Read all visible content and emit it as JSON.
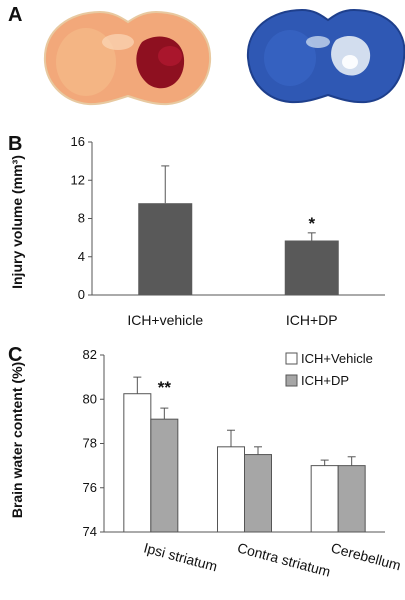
{
  "panels": {
    "a": "A",
    "b": "B",
    "c": "C"
  },
  "images": {
    "left": {
      "name": "TTC-stained coronal brain section",
      "tissue_color": "#f2a87a",
      "lesion_color": "#8e1020"
    },
    "right": {
      "name": "Luxol blue-stained coronal brain section",
      "tissue_color": "#2f58b4",
      "lesion_color": "#e4ecf4"
    }
  },
  "chart_data": [
    {
      "id": "B",
      "type": "bar",
      "title": "",
      "ylabel": "Injury volume (mm³)",
      "xlabel": "",
      "ylim": [
        0,
        16
      ],
      "yticks": [
        "0",
        "4",
        "8",
        "12",
        "16"
      ],
      "categories": [
        "ICH+vehicle",
        "ICH+DP"
      ],
      "values": [
        9.6,
        5.7
      ],
      "errors": [
        3.9,
        0.8
      ],
      "significance": [
        "",
        "*"
      ],
      "bar_color": "#595959",
      "grid": false
    },
    {
      "id": "C",
      "type": "bar",
      "title": "",
      "ylabel": "Brain water content (%)",
      "xlabel": "",
      "ylim": [
        74,
        82
      ],
      "yticks": [
        "74",
        "76",
        "78",
        "80",
        "82"
      ],
      "categories": [
        "Ipsi striatum",
        "Contra striatum",
        "Cerebellum"
      ],
      "series": [
        {
          "name": "ICH+Vehicle",
          "values": [
            80.25,
            77.85,
            77.0
          ],
          "errors": [
            0.75,
            0.75,
            0.25
          ],
          "color": "#ffffff"
        },
        {
          "name": "ICH+DP",
          "values": [
            79.1,
            77.5,
            77.0
          ],
          "errors": [
            0.5,
            0.35,
            0.4
          ],
          "color": "#a6a6a6"
        }
      ],
      "significance": [
        "**",
        "",
        ""
      ],
      "legend_position": "top-right",
      "grid": false
    }
  ]
}
